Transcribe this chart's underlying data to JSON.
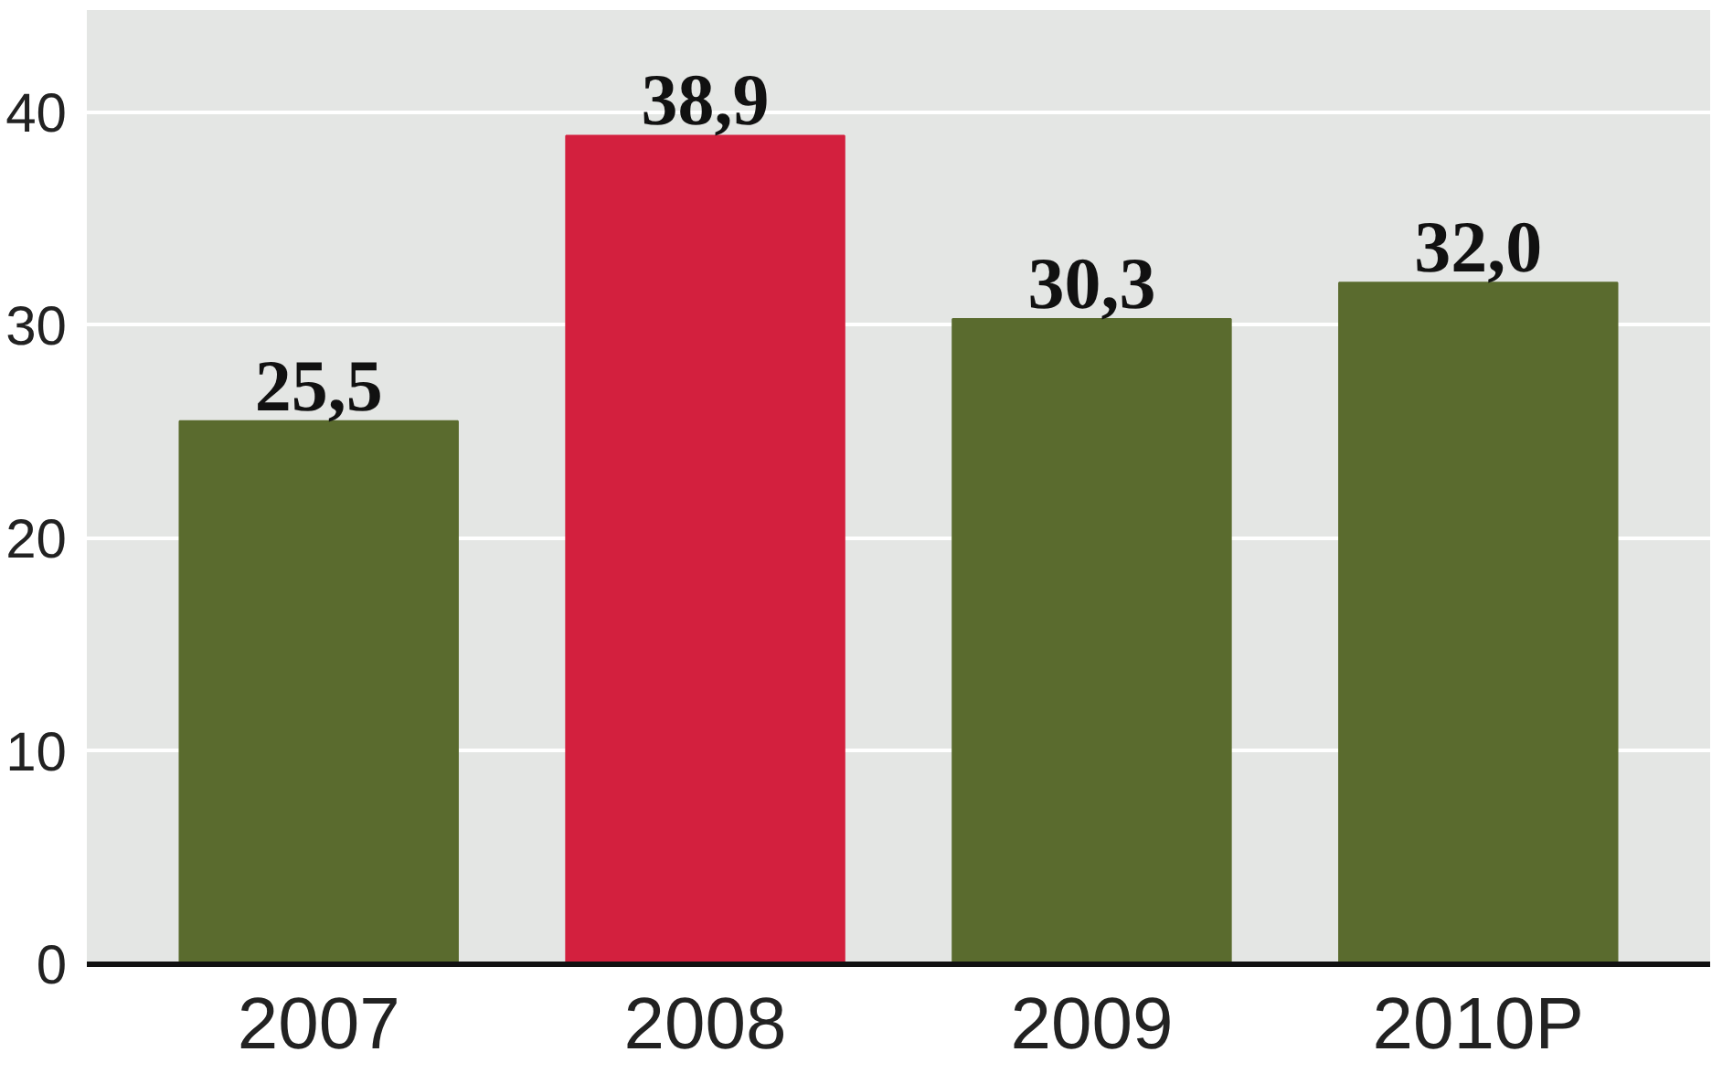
{
  "chart_data": {
    "type": "bar",
    "categories": [
      "2007",
      "2008",
      "2009",
      "2010P"
    ],
    "values": [
      25.5,
      38.9,
      30.3,
      32.0
    ],
    "colors": [
      "#5a6b2e",
      "#d3203e",
      "#5a6b2e",
      "#5a6b2e"
    ],
    "value_labels": [
      "25,5",
      "38,9",
      "30,3",
      "32,0"
    ],
    "ylim": [
      0,
      40
    ],
    "yticks": [
      0,
      10,
      20,
      30,
      40
    ],
    "grid": "y"
  }
}
